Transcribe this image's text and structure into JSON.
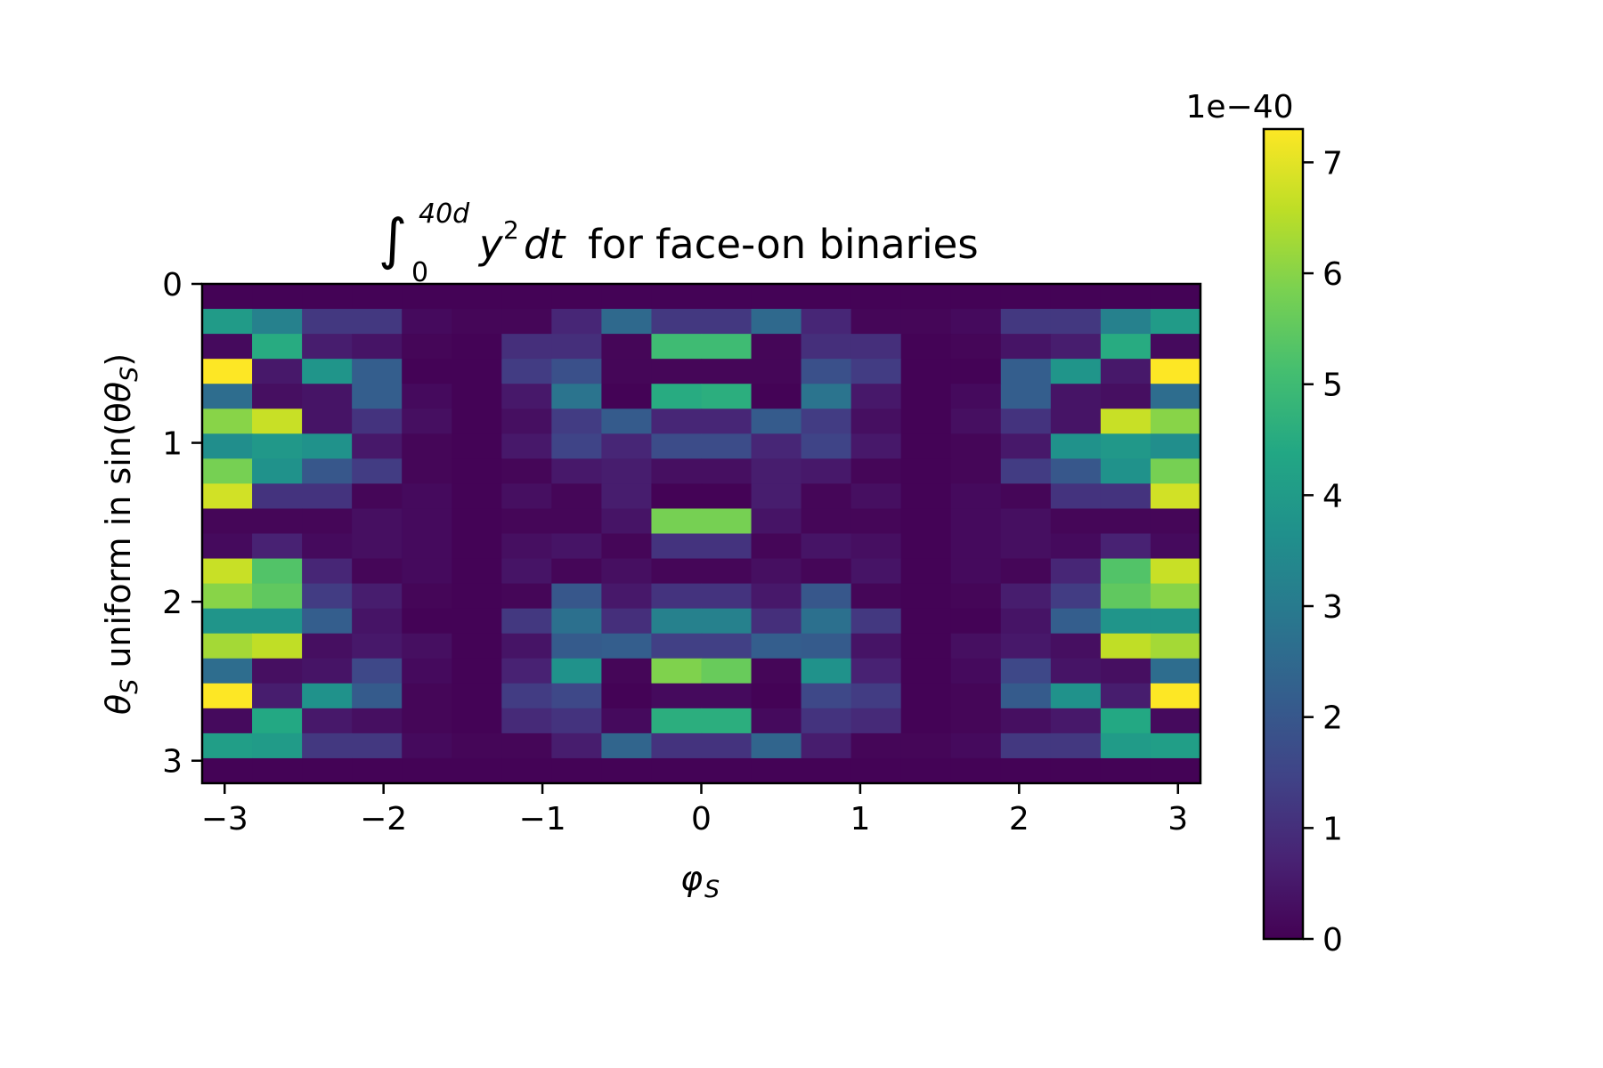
{
  "chart_data": {
    "type": "heatmap",
    "title": "∫₀⁴⁰ᵈ y²dt for face-on binaries",
    "title_parts": {
      "integral": "∫",
      "upper_limit": "40d",
      "lower_limit": "0",
      "integrand": "y",
      "power": "2",
      "differential": "dt",
      "rest": "for face-on binaries"
    },
    "xlabel": "φ",
    "xlabel_sub": "S",
    "ylabel_main": "θ",
    "ylabel_sub": "S",
    "ylabel_rest": " uniform in sin(θ",
    "ylabel_close": ")",
    "xlim": [
      -3.14159,
      3.14159
    ],
    "ylim": [
      0,
      3.14159
    ],
    "y_inverted": true,
    "x_ticks": [
      -3,
      -2,
      -1,
      0,
      1,
      2,
      3
    ],
    "x_tick_labels": [
      "−3",
      "−2",
      "−1",
      "0",
      "1",
      "2",
      "3"
    ],
    "y_ticks": [
      0,
      1,
      2,
      3
    ],
    "y_tick_labels": [
      "0",
      "1",
      "2",
      "3"
    ],
    "colormap": "viridis",
    "colorbar": {
      "min": 0,
      "max": 7.3,
      "ticks": [
        0,
        1,
        2,
        3,
        4,
        5,
        6,
        7
      ],
      "tick_labels": [
        "0",
        "1",
        "2",
        "3",
        "4",
        "5",
        "6",
        "7"
      ],
      "multiplier_label": "1e−40"
    },
    "n_cols": 20,
    "n_rows": 20,
    "values": [
      [
        0.05,
        0.05,
        0.05,
        0.05,
        0.05,
        0.05,
        0.05,
        0.05,
        0.05,
        0.05,
        0.05,
        0.05,
        0.05,
        0.05,
        0.05,
        0.05,
        0.05,
        0.05,
        0.05,
        0.05
      ],
      [
        4.0,
        3.2,
        1.2,
        1.2,
        0.2,
        0.1,
        0.1,
        0.8,
        2.5,
        1.2,
        1.2,
        2.5,
        0.8,
        0.1,
        0.1,
        0.2,
        1.2,
        1.2,
        3.2,
        4.0
      ],
      [
        0.2,
        4.5,
        0.6,
        0.4,
        0.1,
        0.05,
        1.0,
        1.0,
        0.1,
        5.0,
        5.0,
        0.1,
        1.0,
        1.0,
        0.05,
        0.1,
        0.4,
        0.6,
        4.5,
        0.2
      ],
      [
        7.3,
        0.5,
        3.8,
        2.2,
        0.05,
        0.05,
        1.3,
        1.8,
        0.1,
        0.1,
        0.1,
        0.1,
        1.8,
        1.3,
        0.05,
        0.05,
        2.2,
        3.8,
        0.5,
        7.3
      ],
      [
        2.6,
        0.3,
        0.4,
        2.2,
        0.2,
        0.05,
        0.5,
        2.8,
        0.05,
        4.5,
        4.6,
        0.05,
        2.8,
        0.5,
        0.05,
        0.2,
        2.2,
        0.4,
        0.3,
        2.6
      ],
      [
        6.0,
        6.7,
        0.4,
        1.1,
        0.3,
        0.05,
        0.3,
        1.3,
        2.1,
        0.8,
        0.8,
        2.1,
        1.3,
        0.3,
        0.05,
        0.3,
        1.1,
        0.4,
        6.7,
        6.0
      ],
      [
        3.6,
        3.9,
        3.7,
        0.5,
        0.1,
        0.05,
        0.5,
        1.5,
        0.8,
        1.7,
        1.7,
        0.8,
        1.5,
        0.5,
        0.05,
        0.1,
        0.5,
        3.7,
        3.9,
        3.6
      ],
      [
        5.8,
        3.7,
        2.0,
        1.3,
        0.1,
        0.05,
        0.1,
        0.5,
        0.6,
        0.3,
        0.3,
        0.6,
        0.5,
        0.1,
        0.05,
        0.1,
        1.3,
        2.0,
        3.7,
        5.8
      ],
      [
        6.8,
        1.1,
        1.1,
        0.1,
        0.2,
        0.05,
        0.3,
        0.1,
        0.6,
        0.05,
        0.05,
        0.6,
        0.1,
        0.3,
        0.05,
        0.2,
        0.1,
        1.1,
        1.1,
        6.8
      ],
      [
        0.1,
        0.1,
        0.1,
        0.3,
        0.2,
        0.05,
        0.1,
        0.1,
        0.4,
        5.8,
        5.8,
        0.4,
        0.1,
        0.1,
        0.05,
        0.2,
        0.3,
        0.1,
        0.1,
        0.1
      ],
      [
        0.2,
        0.7,
        0.2,
        0.3,
        0.2,
        0.05,
        0.3,
        0.4,
        0.1,
        1.1,
        1.1,
        0.1,
        0.4,
        0.3,
        0.05,
        0.2,
        0.3,
        0.2,
        0.7,
        0.2
      ],
      [
        6.7,
        5.3,
        0.8,
        0.1,
        0.2,
        0.05,
        0.4,
        0.1,
        0.3,
        0.1,
        0.1,
        0.3,
        0.1,
        0.4,
        0.05,
        0.2,
        0.1,
        0.8,
        5.3,
        6.7
      ],
      [
        6.0,
        5.5,
        1.3,
        0.6,
        0.1,
        0.05,
        0.1,
        2.0,
        0.5,
        1.1,
        1.1,
        0.5,
        2.0,
        0.1,
        0.05,
        0.1,
        0.6,
        1.3,
        5.5,
        6.0
      ],
      [
        3.8,
        3.8,
        2.2,
        0.4,
        0.05,
        0.05,
        1.2,
        2.7,
        1.0,
        3.2,
        3.2,
        1.0,
        2.7,
        1.2,
        0.05,
        0.05,
        0.4,
        2.2,
        3.8,
        3.8
      ],
      [
        6.3,
        6.6,
        0.3,
        0.5,
        0.3,
        0.05,
        0.4,
        2.1,
        2.2,
        1.4,
        1.4,
        2.2,
        2.1,
        0.4,
        0.05,
        0.3,
        0.5,
        0.3,
        6.6,
        6.3
      ],
      [
        2.6,
        0.3,
        0.4,
        1.6,
        0.2,
        0.05,
        0.7,
        3.7,
        0.1,
        5.9,
        5.6,
        0.1,
        3.7,
        0.7,
        0.05,
        0.2,
        1.6,
        0.4,
        0.3,
        2.6
      ],
      [
        7.3,
        0.6,
        3.7,
        2.1,
        0.1,
        0.05,
        1.3,
        1.6,
        0.05,
        0.2,
        0.2,
        0.05,
        1.6,
        1.3,
        0.05,
        0.1,
        2.1,
        3.7,
        0.6,
        7.3
      ],
      [
        0.2,
        4.4,
        0.5,
        0.3,
        0.1,
        0.05,
        0.9,
        1.1,
        0.2,
        4.6,
        4.6,
        0.2,
        1.1,
        0.9,
        0.05,
        0.1,
        0.3,
        0.5,
        4.4,
        0.2
      ],
      [
        4.1,
        4.0,
        1.2,
        1.2,
        0.2,
        0.1,
        0.1,
        0.6,
        2.4,
        1.1,
        1.1,
        2.4,
        0.6,
        0.1,
        0.1,
        0.2,
        1.2,
        1.2,
        4.0,
        4.1
      ],
      [
        0.05,
        0.05,
        0.05,
        0.05,
        0.05,
        0.05,
        0.05,
        0.05,
        0.05,
        0.05,
        0.05,
        0.05,
        0.05,
        0.05,
        0.05,
        0.05,
        0.05,
        0.05,
        0.05,
        0.05
      ]
    ]
  }
}
